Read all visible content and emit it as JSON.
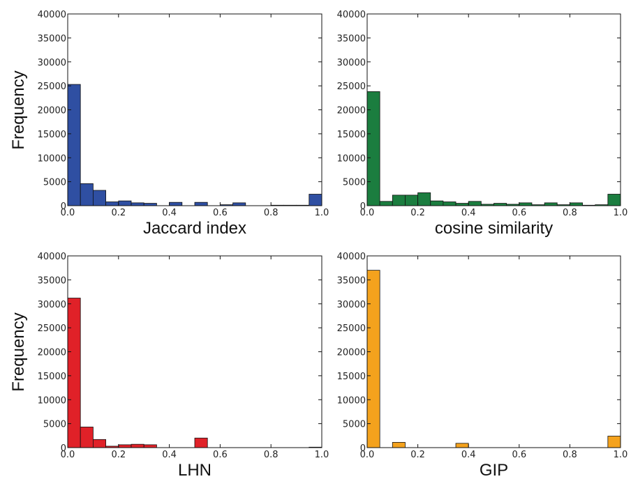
{
  "chart_data": [
    {
      "type": "bar",
      "xlabel": "Jaccard index",
      "ylabel": "Frequency",
      "color": "#2f4fa2",
      "xlim": [
        0.0,
        1.0
      ],
      "ylim": [
        0,
        40000
      ],
      "bin_width": 0.05,
      "bins": [
        0.0,
        0.05,
        0.1,
        0.15,
        0.2,
        0.25,
        0.3,
        0.35,
        0.4,
        0.45,
        0.5,
        0.55,
        0.6,
        0.65,
        0.7,
        0.75,
        0.8,
        0.85,
        0.9,
        0.95
      ],
      "values": [
        25300,
        4600,
        3200,
        800,
        1000,
        600,
        500,
        0,
        700,
        0,
        700,
        0,
        200,
        600,
        0,
        0,
        100,
        100,
        100,
        2400
      ],
      "xticks": [
        "0.0",
        "0.2",
        "0.4",
        "0.6",
        "0.8",
        "1.0"
      ],
      "yticks": [
        "0",
        "5000",
        "10000",
        "15000",
        "20000",
        "25000",
        "30000",
        "35000",
        "40000"
      ]
    },
    {
      "type": "bar",
      "xlabel": "cosine similarity",
      "ylabel": "",
      "color": "#1b7d3f",
      "xlim": [
        0.0,
        1.0
      ],
      "ylim": [
        0,
        40000
      ],
      "bin_width": 0.05,
      "bins": [
        0.0,
        0.05,
        0.1,
        0.15,
        0.2,
        0.25,
        0.3,
        0.35,
        0.4,
        0.45,
        0.5,
        0.55,
        0.6,
        0.65,
        0.7,
        0.75,
        0.8,
        0.85,
        0.9,
        0.95
      ],
      "values": [
        23800,
        900,
        2200,
        2200,
        2700,
        1000,
        800,
        500,
        900,
        300,
        500,
        300,
        600,
        200,
        600,
        200,
        600,
        100,
        200,
        2400
      ],
      "xticks": [
        "0.0",
        "0.2",
        "0.4",
        "0.6",
        "0.8",
        "1.0"
      ],
      "yticks": [
        "0",
        "5000",
        "10000",
        "15000",
        "20000",
        "25000",
        "30000",
        "35000",
        "40000"
      ]
    },
    {
      "type": "bar",
      "xlabel": "LHN",
      "ylabel": "Frequency",
      "color": "#e02128",
      "xlim": [
        0.0,
        1.0
      ],
      "ylim": [
        0,
        40000
      ],
      "bin_width": 0.05,
      "bins": [
        0.0,
        0.05,
        0.1,
        0.15,
        0.2,
        0.25,
        0.3,
        0.35,
        0.4,
        0.45,
        0.5,
        0.55,
        0.6,
        0.65,
        0.7,
        0.75,
        0.8,
        0.85,
        0.9,
        0.95
      ],
      "values": [
        31200,
        4300,
        1700,
        300,
        600,
        700,
        600,
        0,
        0,
        0,
        2000,
        0,
        0,
        0,
        0,
        0,
        0,
        0,
        0,
        100
      ],
      "xticks": [
        "0.0",
        "0.2",
        "0.4",
        "0.6",
        "0.8",
        "1.0"
      ],
      "yticks": [
        "0",
        "5000",
        "10000",
        "15000",
        "20000",
        "25000",
        "30000",
        "35000",
        "40000"
      ]
    },
    {
      "type": "bar",
      "xlabel": "GIP",
      "ylabel": "",
      "color": "#f4a21d",
      "xlim": [
        0.0,
        1.0
      ],
      "ylim": [
        0,
        40000
      ],
      "bin_width": 0.05,
      "bins": [
        0.0,
        0.05,
        0.1,
        0.15,
        0.2,
        0.25,
        0.3,
        0.35,
        0.4,
        0.45,
        0.5,
        0.55,
        0.6,
        0.65,
        0.7,
        0.75,
        0.8,
        0.85,
        0.9,
        0.95
      ],
      "values": [
        37000,
        0,
        1100,
        0,
        0,
        0,
        0,
        900,
        0,
        0,
        0,
        0,
        0,
        0,
        0,
        0,
        0,
        0,
        0,
        2400
      ],
      "xticks": [
        "0.0",
        "0.2",
        "0.4",
        "0.6",
        "0.8",
        "1.0"
      ],
      "yticks": [
        "0",
        "5000",
        "10000",
        "15000",
        "20000",
        "25000",
        "30000",
        "35000",
        "40000"
      ]
    }
  ]
}
